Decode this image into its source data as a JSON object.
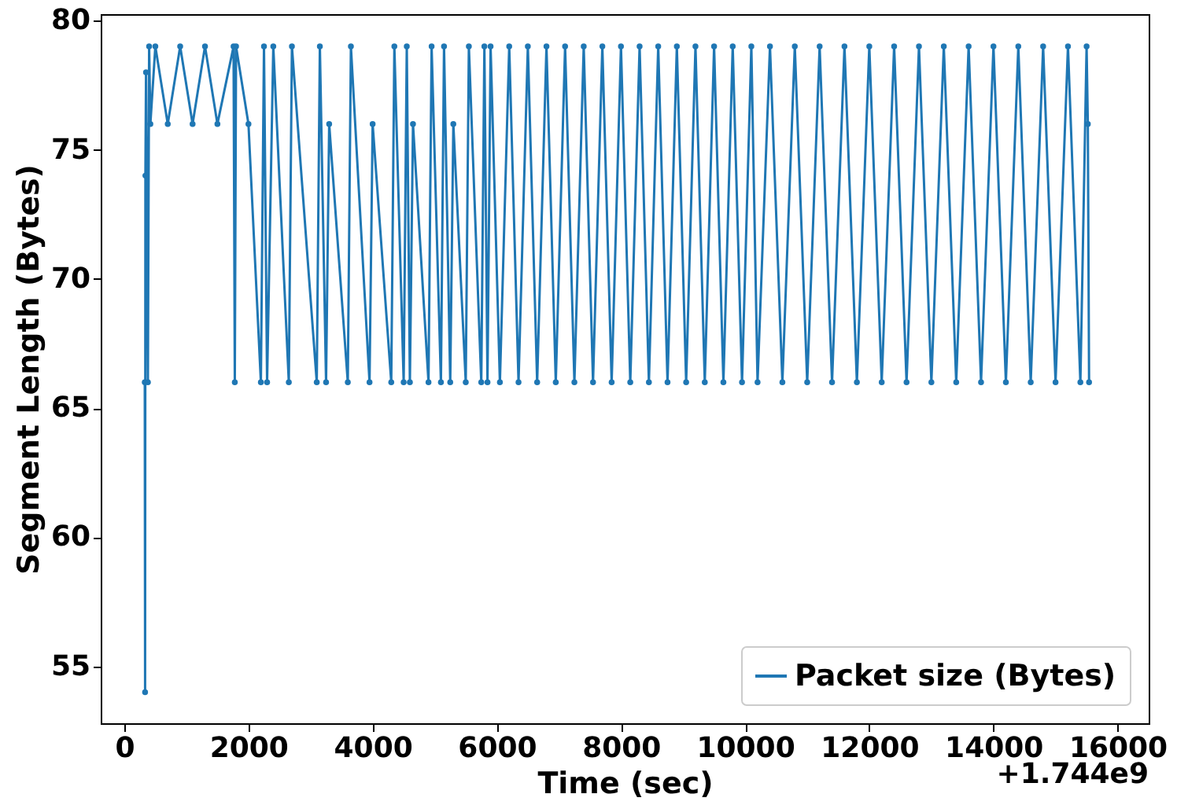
{
  "chart_data": {
    "type": "line",
    "xlabel": "Time (sec)",
    "ylabel": "Segment Length (Bytes)",
    "xlim": [
      -380,
      16500
    ],
    "ylim": [
      52.8,
      80.25
    ],
    "xticks": [
      0,
      2000,
      4000,
      6000,
      8000,
      10000,
      12000,
      14000,
      16000
    ],
    "yticks": [
      55,
      60,
      65,
      70,
      75,
      80
    ],
    "annotations": [
      "+1.744e9"
    ],
    "legend": "bottom right",
    "marker": "circle",
    "line_style": "solid",
    "series": [
      {
        "name": "Packet size (Bytes)",
        "color": "#1f77b4",
        "x": [
          330,
          335,
          340,
          350,
          380,
          400,
          420,
          500,
          700,
          900,
          1100,
          1300,
          1500,
          1760,
          1780,
          1800,
          2000,
          2200,
          2250,
          2300,
          2400,
          2650,
          2700,
          3100,
          3150,
          3250,
          3300,
          3600,
          3650,
          3950,
          4000,
          4300,
          4350,
          4500,
          4550,
          4600,
          4650,
          4900,
          4950,
          5100,
          5150,
          5250,
          5300,
          5500,
          5550,
          5750,
          5800,
          5850,
          5900,
          6050,
          6200,
          6350,
          6500,
          6650,
          6800,
          6950,
          7100,
          7250,
          7400,
          7550,
          7700,
          7850,
          8000,
          8150,
          8300,
          8450,
          8600,
          8750,
          8900,
          9050,
          9200,
          9350,
          9500,
          9650,
          9800,
          9950,
          10100,
          10200,
          10400,
          10600,
          10800,
          11000,
          11200,
          11400,
          11600,
          11800,
          12000,
          12200,
          12400,
          12600,
          12800,
          13000,
          13200,
          13400,
          13600,
          13800,
          14000,
          14200,
          14400,
          14600,
          14800,
          15000,
          15200,
          15400,
          15500,
          15520,
          15540
        ],
        "values": [
          66,
          54,
          74,
          78,
          66,
          79,
          76,
          79,
          76,
          79,
          76,
          79,
          76,
          79,
          66,
          79,
          76,
          66,
          79,
          66,
          79,
          66,
          79,
          66,
          79,
          66,
          76,
          66,
          79,
          66,
          76,
          66,
          79,
          66,
          79,
          66,
          76,
          66,
          79,
          66,
          79,
          66,
          76,
          66,
          79,
          66,
          79,
          66,
          79,
          66,
          79,
          66,
          79,
          66,
          79,
          66,
          79,
          66,
          79,
          66,
          79,
          66,
          79,
          66,
          79,
          66,
          79,
          66,
          79,
          66,
          79,
          66,
          79,
          66,
          79,
          66,
          79,
          66,
          79,
          66,
          79,
          66,
          79,
          66,
          79,
          66,
          79,
          66,
          79,
          66,
          79,
          66,
          79,
          66,
          79,
          66,
          79,
          66,
          79,
          66,
          79,
          66,
          79,
          66,
          79,
          76,
          66
        ]
      }
    ]
  }
}
